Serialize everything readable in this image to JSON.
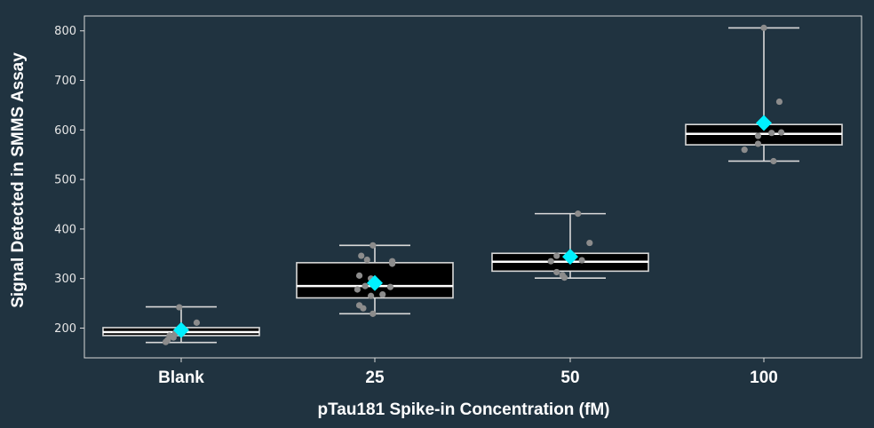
{
  "chart_data": {
    "type": "box",
    "xlabel": "pTau181 Spike-in Concentration (fM)",
    "ylabel": "Signal Detected in SMMS Assay",
    "categories": [
      "Blank",
      "25",
      "50",
      "100"
    ],
    "ylim": [
      140,
      830
    ],
    "yticks": [
      200,
      300,
      400,
      500,
      600,
      700,
      800
    ],
    "grid": false,
    "colors": {
      "background": "#203340",
      "box_fill": "#000000",
      "box_edge": "#d9d9d9",
      "median": "#ffffff",
      "mean_marker": "#00f0ff",
      "points": "#8c8c8c"
    },
    "boxes": [
      {
        "category": "Blank",
        "min": 171,
        "q1": 185,
        "median": 192,
        "q3": 201,
        "max": 243,
        "mean": 196
      },
      {
        "category": "25",
        "min": 229,
        "q1": 261,
        "median": 285,
        "q3": 332,
        "max": 367,
        "mean": 291
      },
      {
        "category": "50",
        "min": 301,
        "q1": 315,
        "median": 334,
        "q3": 351,
        "max": 431,
        "mean": 344
      },
      {
        "category": "100",
        "min": 537,
        "q1": 570,
        "median": 592,
        "q3": 611,
        "max": 806,
        "mean": 614
      }
    ],
    "points": [
      [
        {
          "x": -0.01,
          "y": 242
        },
        {
          "x": 0.08,
          "y": 211
        },
        {
          "x": -0.06,
          "y": 185
        },
        {
          "x": -0.04,
          "y": 181
        },
        {
          "x": -0.07,
          "y": 176
        },
        {
          "x": -0.08,
          "y": 172
        },
        {
          "x": -0.03,
          "y": 190
        },
        {
          "x": 0.01,
          "y": 195
        }
      ],
      [
        {
          "x": -0.01,
          "y": 367
        },
        {
          "x": -0.07,
          "y": 346
        },
        {
          "x": -0.04,
          "y": 338
        },
        {
          "x": 0.09,
          "y": 335
        },
        {
          "x": 0.09,
          "y": 330
        },
        {
          "x": -0.08,
          "y": 306
        },
        {
          "x": -0.02,
          "y": 300
        },
        {
          "x": -0.05,
          "y": 285
        },
        {
          "x": 0.08,
          "y": 283
        },
        {
          "x": -0.09,
          "y": 278
        },
        {
          "x": 0.04,
          "y": 268
        },
        {
          "x": -0.02,
          "y": 265
        },
        {
          "x": -0.08,
          "y": 246
        },
        {
          "x": -0.06,
          "y": 240
        },
        {
          "x": -0.01,
          "y": 229
        }
      ],
      [
        {
          "x": 0.04,
          "y": 431
        },
        {
          "x": 0.1,
          "y": 372
        },
        {
          "x": -0.07,
          "y": 346
        },
        {
          "x": 0.06,
          "y": 337
        },
        {
          "x": -0.1,
          "y": 335
        },
        {
          "x": -0.07,
          "y": 313
        },
        {
          "x": -0.04,
          "y": 307
        },
        {
          "x": -0.03,
          "y": 302
        }
      ],
      [
        {
          "x": 0.0,
          "y": 806
        },
        {
          "x": 0.08,
          "y": 657
        },
        {
          "x": 0.09,
          "y": 595
        },
        {
          "x": 0.04,
          "y": 594
        },
        {
          "x": -0.03,
          "y": 588
        },
        {
          "x": -0.03,
          "y": 572
        },
        {
          "x": -0.1,
          "y": 560
        },
        {
          "x": 0.05,
          "y": 537
        }
      ]
    ]
  }
}
